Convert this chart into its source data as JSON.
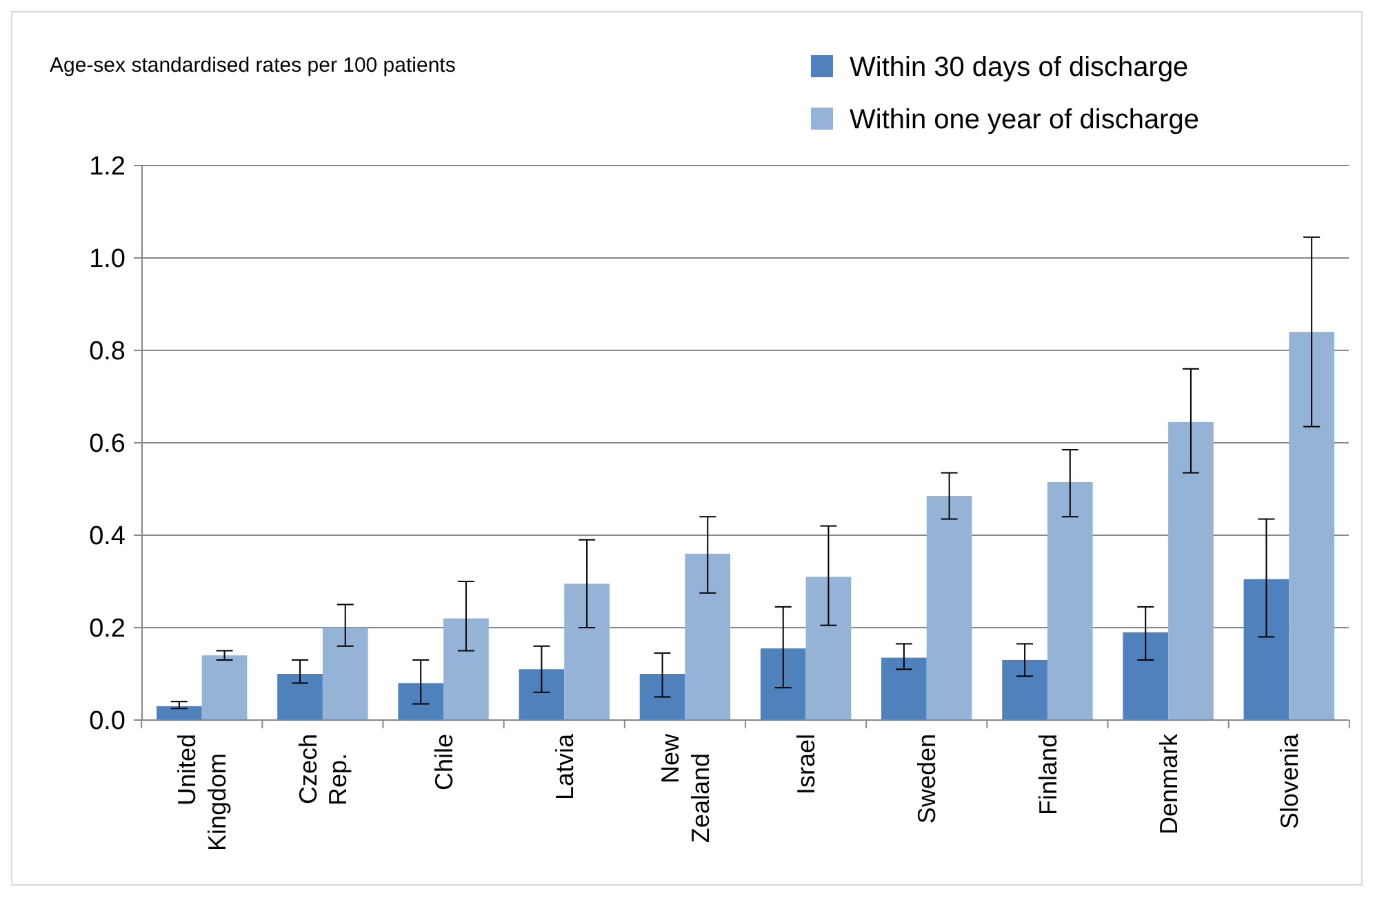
{
  "chart_data": {
    "type": "bar",
    "ylabel": "Age-sex standardised rates per 100 patients",
    "categories": [
      "United Kingdom",
      "Czech Rep.",
      "Chile",
      "Latvia",
      "New Zealand",
      "Israel",
      "Sweden",
      "Finland",
      "Denmark",
      "Slovenia"
    ],
    "series": [
      {
        "name": "Within 30 days of discharge",
        "color": "#4f81bd",
        "values": [
          0.03,
          0.1,
          0.08,
          0.11,
          0.1,
          0.155,
          0.135,
          0.13,
          0.19,
          0.305
        ],
        "errors": [
          [
            0.025,
            0.04
          ],
          [
            0.08,
            0.13
          ],
          [
            0.035,
            0.13
          ],
          [
            0.06,
            0.16
          ],
          [
            0.05,
            0.145
          ],
          [
            0.07,
            0.245
          ],
          [
            0.11,
            0.165
          ],
          [
            0.095,
            0.165
          ],
          [
            0.13,
            0.245
          ],
          [
            0.18,
            0.435
          ]
        ]
      },
      {
        "name": "Within one year of discharge",
        "color": "#95b3d7",
        "values": [
          0.14,
          0.2,
          0.22,
          0.295,
          0.36,
          0.31,
          0.485,
          0.515,
          0.645,
          0.84
        ],
        "errors": [
          [
            0.13,
            0.15
          ],
          [
            0.16,
            0.25
          ],
          [
            0.15,
            0.3
          ],
          [
            0.2,
            0.39
          ],
          [
            0.275,
            0.44
          ],
          [
            0.205,
            0.42
          ],
          [
            0.435,
            0.535
          ],
          [
            0.44,
            0.585
          ],
          [
            0.535,
            0.76
          ],
          [
            0.635,
            1.045
          ]
        ]
      }
    ],
    "ylim": [
      0,
      1.2
    ],
    "yticks": [
      {
        "value": 0,
        "label": "0.0"
      },
      {
        "value": 0.2,
        "label": "0.2"
      },
      {
        "value": 0.4,
        "label": "0.4"
      },
      {
        "value": 0.6,
        "label": "0.6"
      },
      {
        "value": 0.8,
        "label": "0.8"
      },
      {
        "value": 1,
        "label": "1.0"
      },
      {
        "value": 1.2,
        "label": "1.2"
      }
    ],
    "grid": "y",
    "legend": "top right"
  }
}
